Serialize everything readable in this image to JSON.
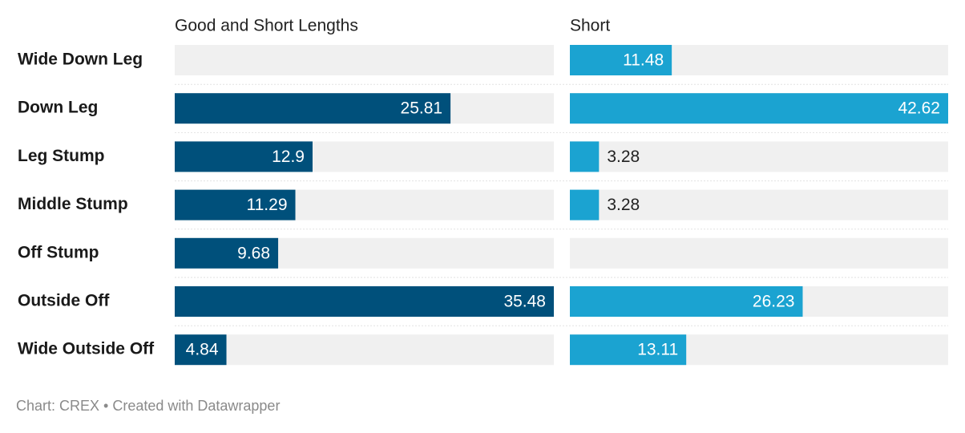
{
  "chart_data": {
    "type": "bar",
    "orientation": "horizontal",
    "categories": [
      "Wide Down Leg",
      "Down Leg",
      "Leg Stump",
      "Middle Stump",
      "Off Stump",
      "Outside Off",
      "Wide Outside Off"
    ],
    "series": [
      {
        "name": "Good and Short Lengths",
        "color": "#00507b",
        "values": [
          null,
          25.81,
          12.9,
          11.29,
          9.68,
          35.48,
          4.84
        ],
        "xlim": [
          0,
          35.48
        ]
      },
      {
        "name": "Short",
        "color": "#1ba3d1",
        "values": [
          11.48,
          42.62,
          3.28,
          3.28,
          null,
          26.23,
          13.11
        ],
        "xlim": [
          0,
          42.62
        ]
      }
    ],
    "source": "Chart: CREX • Created with Datawrapper"
  }
}
